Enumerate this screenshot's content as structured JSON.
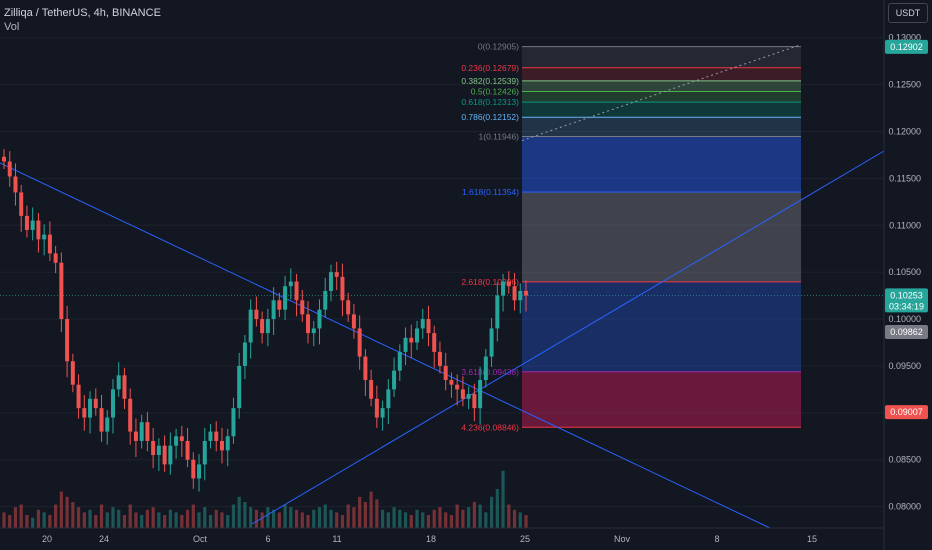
{
  "header": {
    "symbol_line": "Zilliqa / TetherUS, 4h, BINANCE",
    "volume_label": "Vol"
  },
  "currency_button": "USDT",
  "colors": {
    "background": "#131722",
    "up": "#26a69a",
    "down": "#ef5350",
    "trendline": "#2962ff",
    "axis_text": "#b2b5be"
  },
  "chart_data": {
    "type": "candlestick",
    "title": "Zilliqa / TetherUS, 4h, BINANCE",
    "y_axis": {
      "unit": "USDT",
      "ticks": [
        "0.13000",
        "0.12500",
        "0.12000",
        "0.11500",
        "0.11000",
        "0.10500",
        "0.10000",
        "0.09500",
        "0.09000",
        "0.08500",
        "0.08000"
      ],
      "ylim": [
        0.079,
        0.1305
      ]
    },
    "x_axis": {
      "ticks": [
        "20",
        "24",
        "Oct",
        "6",
        "11",
        "18",
        "25",
        "Nov",
        "8",
        "15"
      ]
    },
    "price_labels": [
      {
        "text": "0.12902",
        "value": 0.12902,
        "color": "#26a69a"
      },
      {
        "text": "0.10253",
        "value": 0.10253,
        "color": "#26a69a",
        "sub": "03:34:19"
      },
      {
        "text": "0.09862",
        "value": 0.09862,
        "color": "#787b86"
      },
      {
        "text": "0.09007",
        "value": 0.09007,
        "color": "#ef5350"
      }
    ],
    "fib_extension": {
      "levels": [
        {
          "label": "0(0.12905)",
          "value": 0.12905,
          "color": "#787b86",
          "fill": "rgba(120,123,134,0.18)"
        },
        {
          "label": "0.236(0.12679)",
          "value": 0.12679,
          "color": "#f23645",
          "fill": "rgba(242,54,69,0.18)"
        },
        {
          "label": "0.382(0.12539)",
          "value": 0.12539,
          "color": "#81c784",
          "fill": "rgba(129,199,132,0.25)"
        },
        {
          "label": "0.5(0.12426)",
          "value": 0.12426,
          "color": "#4caf50",
          "fill": "rgba(76,175,80,0.25)"
        },
        {
          "label": "0.618(0.12313)",
          "value": 0.12313,
          "color": "#089981",
          "fill": "rgba(8,153,129,0.25)"
        },
        {
          "label": "0.786(0.12152)",
          "value": 0.12152,
          "color": "#64b5f6",
          "fill": "rgba(100,181,246,0.18)"
        },
        {
          "label": "1(0.11946)",
          "value": 0.11946,
          "color": "#787b86",
          "fill": "rgba(41,98,255,0.45)"
        },
        {
          "label": "1.618(0.11354)",
          "value": 0.11354,
          "color": "#2962ff",
          "fill": "rgba(120,123,134,0.45)"
        },
        {
          "label": "2.618(0.10396)",
          "value": 0.10396,
          "color": "#f23645",
          "fill": "rgba(41,98,255,0.30)"
        },
        {
          "label": "3.618(0.09438)",
          "value": 0.09438,
          "color": "#9c27b0",
          "fill": "rgba(233,30,99,0.40)"
        },
        {
          "label": "4.236(0.08846)",
          "value": 0.08846,
          "color": "#f23645",
          "fill": "rgba(242,54,69,0.45)"
        }
      ],
      "zone_base": 0.09862,
      "zone_base_fill": "rgba(41,98,255,0.30)"
    },
    "candles": [
      {
        "c": 0.1168
      },
      {
        "c": 0.1152
      },
      {
        "c": 0.1135
      },
      {
        "c": 0.111
      },
      {
        "c": 0.1095
      },
      {
        "c": 0.1105
      },
      {
        "c": 0.1085
      },
      {
        "c": 0.109
      },
      {
        "c": 0.107
      },
      {
        "c": 0.106
      },
      {
        "c": 0.1
      },
      {
        "c": 0.0955
      },
      {
        "c": 0.093
      },
      {
        "c": 0.0905
      },
      {
        "c": 0.0895
      },
      {
        "c": 0.0915
      },
      {
        "c": 0.0905
      },
      {
        "c": 0.088
      },
      {
        "c": 0.0895
      },
      {
        "c": 0.0925
      },
      {
        "c": 0.094
      },
      {
        "c": 0.0915
      },
      {
        "c": 0.088
      },
      {
        "c": 0.087
      },
      {
        "c": 0.089
      },
      {
        "c": 0.087
      },
      {
        "c": 0.0855
      },
      {
        "c": 0.0865
      },
      {
        "c": 0.0845
      },
      {
        "c": 0.0865
      },
      {
        "c": 0.0875
      },
      {
        "c": 0.087
      },
      {
        "c": 0.085
      },
      {
        "c": 0.083
      },
      {
        "c": 0.0845
      },
      {
        "c": 0.087
      },
      {
        "c": 0.088
      },
      {
        "c": 0.087
      },
      {
        "c": 0.086
      },
      {
        "c": 0.0875
      },
      {
        "c": 0.0905
      },
      {
        "c": 0.095
      },
      {
        "c": 0.0975
      },
      {
        "c": 0.101
      },
      {
        "c": 0.1
      },
      {
        "c": 0.0985
      },
      {
        "c": 0.1
      },
      {
        "c": 0.102
      },
      {
        "c": 0.101
      },
      {
        "c": 0.1035
      },
      {
        "c": 0.104
      },
      {
        "c": 0.102
      },
      {
        "c": 0.1005
      },
      {
        "c": 0.0985
      },
      {
        "c": 0.099
      },
      {
        "c": 0.101
      },
      {
        "c": 0.103
      },
      {
        "c": 0.105
      },
      {
        "c": 0.1045
      },
      {
        "c": 0.102
      },
      {
        "c": 0.1005
      },
      {
        "c": 0.099
      },
      {
        "c": 0.096
      },
      {
        "c": 0.0935
      },
      {
        "c": 0.0915
      },
      {
        "c": 0.0895
      },
      {
        "c": 0.0905
      },
      {
        "c": 0.0925
      },
      {
        "c": 0.0945
      },
      {
        "c": 0.0965
      },
      {
        "c": 0.098
      },
      {
        "c": 0.0975
      },
      {
        "c": 0.099
      },
      {
        "c": 0.1
      },
      {
        "c": 0.0985
      },
      {
        "c": 0.0965
      },
      {
        "c": 0.095
      },
      {
        "c": 0.0935
      },
      {
        "c": 0.093
      },
      {
        "c": 0.0925
      },
      {
        "c": 0.0915
      },
      {
        "c": 0.092
      },
      {
        "c": 0.0905
      },
      {
        "c": 0.0935
      },
      {
        "c": 0.096
      },
      {
        "c": 0.099
      },
      {
        "c": 0.1025
      },
      {
        "c": 0.104
      },
      {
        "c": 0.1035
      },
      {
        "c": 0.102
      },
      {
        "c": 0.103
      },
      {
        "c": 0.1025
      }
    ],
    "volume": [
      6,
      5,
      8,
      9,
      5,
      4,
      7,
      6,
      5,
      9,
      14,
      12,
      10,
      8,
      6,
      7,
      5,
      9,
      6,
      8,
      7,
      5,
      9,
      6,
      5,
      7,
      8,
      6,
      5,
      7,
      6,
      5,
      7,
      9,
      6,
      8,
      5,
      7,
      6,
      5,
      9,
      12,
      10,
      8,
      7,
      6,
      8,
      7,
      6,
      9,
      8,
      7,
      6,
      5,
      7,
      8,
      9,
      7,
      6,
      5,
      9,
      8,
      12,
      10,
      14,
      11,
      7,
      6,
      8,
      7,
      6,
      5,
      7,
      6,
      5,
      7,
      8,
      6,
      5,
      9,
      7,
      8,
      10,
      9,
      6,
      12,
      15,
      22,
      9,
      7,
      6,
      5
    ]
  }
}
